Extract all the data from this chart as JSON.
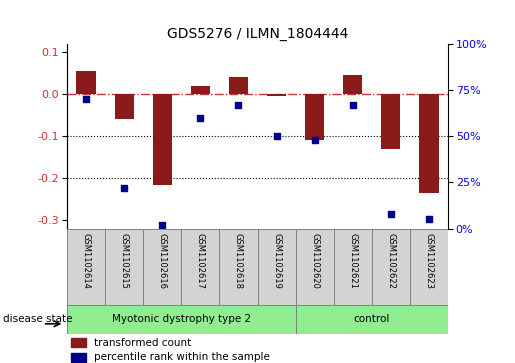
{
  "title": "GDS5276 / ILMN_1804444",
  "samples": [
    "GSM1102614",
    "GSM1102615",
    "GSM1102616",
    "GSM1102617",
    "GSM1102618",
    "GSM1102619",
    "GSM1102620",
    "GSM1102621",
    "GSM1102622",
    "GSM1102623"
  ],
  "red_values": [
    0.055,
    -0.06,
    -0.215,
    0.02,
    0.04,
    -0.005,
    -0.11,
    0.045,
    -0.13,
    -0.235
  ],
  "blue_values_pct": [
    70,
    22,
    2,
    60,
    67,
    50,
    48,
    67,
    8,
    5
  ],
  "group1_count": 6,
  "group2_count": 4,
  "group1_label": "Myotonic dystrophy type 2",
  "group2_label": "control",
  "group_color": "#90EE90",
  "sample_box_color": "#D3D3D3",
  "ylim_left": [
    -0.32,
    0.12
  ],
  "ylim_right": [
    0,
    100
  ],
  "yticks_left": [
    0.1,
    0.0,
    -0.1,
    -0.2,
    -0.3
  ],
  "yticks_right": [
    100,
    75,
    50,
    25,
    0
  ],
  "red_color": "#8B1A1A",
  "blue_color": "#00008B",
  "dashed_line_color": "#CC3333",
  "bar_width": 0.5,
  "legend_items": [
    "transformed count",
    "percentile rank within the sample"
  ],
  "disease_state_label": "disease state"
}
